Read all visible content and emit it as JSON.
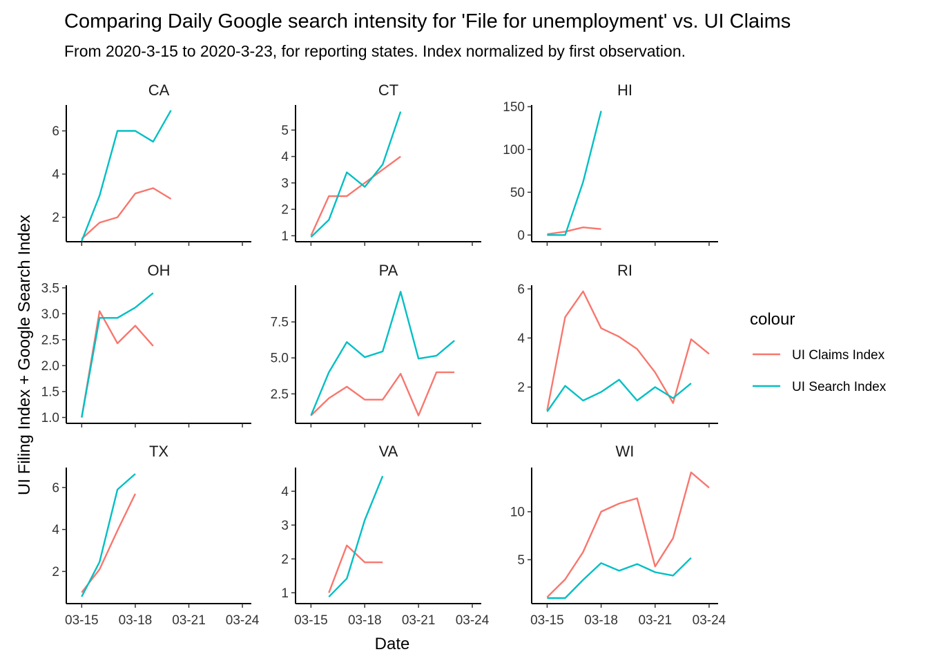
{
  "title": "Comparing Daily Google search intensity for 'File for unemployment' vs. UI Claims",
  "subtitle": "From 2020-3-15 to 2020-3-23, for reporting states. Index normalized by first observation.",
  "xlabel": "Date",
  "ylabel": "UI Filing Index + Google Search Index",
  "legend": {
    "title": "colour",
    "items": [
      {
        "label": "UI Claims Index",
        "color": "#F8766D"
      },
      {
        "label": "UI Search Index",
        "color": "#00BFC4"
      }
    ]
  },
  "chart_data": {
    "type": "line",
    "x_ticks": [
      "03-15",
      "03-18",
      "03-21",
      "03-24"
    ],
    "facets": [
      {
        "state": "CA",
        "ylim": [
          0.9,
          7.2
        ],
        "yticks": [
          2,
          4,
          6
        ],
        "series": [
          {
            "name": "UI Claims Index",
            "x": [
              "03-15",
              "03-16",
              "03-17",
              "03-18",
              "03-19",
              "03-20"
            ],
            "y": [
              1.0,
              1.75,
              2.0,
              3.1,
              3.35,
              2.85
            ]
          },
          {
            "name": "UI Search Index",
            "x": [
              "03-15",
              "03-16",
              "03-17",
              "03-18",
              "03-19",
              "03-20"
            ],
            "y": [
              0.9,
              3.0,
              6.0,
              6.0,
              5.5,
              6.95
            ]
          }
        ]
      },
      {
        "state": "CT",
        "ylim": [
          0.8,
          5.95
        ],
        "yticks": [
          1,
          2,
          3,
          4,
          5
        ],
        "series": [
          {
            "name": "UI Claims Index",
            "x": [
              "03-15",
              "03-16",
              "03-17",
              "03-18",
              "03-19",
              "03-20"
            ],
            "y": [
              1.0,
              2.5,
              2.5,
              3.0,
              3.5,
              4.0
            ]
          },
          {
            "name": "UI Search Index",
            "x": [
              "03-15",
              "03-16",
              "03-17",
              "03-18",
              "03-19",
              "03-20"
            ],
            "y": [
              0.95,
              1.6,
              3.4,
              2.85,
              3.7,
              5.7
            ]
          }
        ]
      },
      {
        "state": "HI",
        "ylim": [
          -7,
          152
        ],
        "yticks": [
          0,
          50,
          100,
          150
        ],
        "series": [
          {
            "name": "UI Claims Index",
            "x": [
              "03-15",
              "03-16",
              "03-17",
              "03-18"
            ],
            "y": [
              1,
              4,
              9,
              7
            ]
          },
          {
            "name": "UI Search Index",
            "x": [
              "03-15",
              "03-16",
              "03-17",
              "03-18"
            ],
            "y": [
              0,
              0,
              62,
              145
            ]
          }
        ]
      },
      {
        "state": "OH",
        "ylim": [
          0.9,
          3.55
        ],
        "yticks": [
          1.0,
          1.5,
          2.0,
          2.5,
          3.0,
          3.5
        ],
        "series": [
          {
            "name": "UI Claims Index",
            "x": [
              "03-15",
              "03-16",
              "03-17",
              "03-18",
              "03-19"
            ],
            "y": [
              1.0,
              3.05,
              2.43,
              2.77,
              2.38
            ]
          },
          {
            "name": "UI Search Index",
            "x": [
              "03-15",
              "03-16",
              "03-17",
              "03-18",
              "03-19"
            ],
            "y": [
              1.0,
              2.92,
              2.92,
              3.12,
              3.4
            ]
          }
        ]
      },
      {
        "state": "PA",
        "ylim": [
          0.5,
          10.05
        ],
        "yticks": [
          2.5,
          5.0,
          7.5
        ],
        "series": [
          {
            "name": "UI Claims Index",
            "x": [
              "03-15",
              "03-16",
              "03-17",
              "03-18",
              "03-19",
              "03-20",
              "03-21",
              "03-22",
              "03-23"
            ],
            "y": [
              1.0,
              2.2,
              3.0,
              2.1,
              2.1,
              3.9,
              1.0,
              4.0,
              4.0
            ]
          },
          {
            "name": "UI Search Index",
            "x": [
              "03-15",
              "03-16",
              "03-17",
              "03-18",
              "03-19",
              "03-20",
              "03-21",
              "03-22",
              "03-23"
            ],
            "y": [
              1.0,
              4.0,
              6.1,
              5.05,
              5.45,
              9.6,
              4.95,
              5.15,
              6.2
            ]
          }
        ]
      },
      {
        "state": "RI",
        "ylim": [
          0.55,
          6.15
        ],
        "yticks": [
          2,
          4,
          6
        ],
        "series": [
          {
            "name": "UI Claims Index",
            "x": [
              "03-15",
              "03-16",
              "03-17",
              "03-18",
              "03-19",
              "03-20",
              "03-21",
              "03-22",
              "03-23",
              "03-24"
            ],
            "y": [
              1.05,
              4.85,
              5.9,
              4.4,
              4.05,
              3.55,
              2.6,
              1.35,
              3.95,
              3.35
            ]
          },
          {
            "name": "UI Search Index",
            "x": [
              "03-15",
              "03-16",
              "03-17",
              "03-18",
              "03-19",
              "03-20",
              "03-21",
              "03-22",
              "03-23"
            ],
            "y": [
              1.0,
              2.05,
              1.45,
              1.8,
              2.3,
              1.45,
              2.0,
              1.55,
              2.15
            ]
          }
        ]
      },
      {
        "state": "TX",
        "ylim": [
          0.5,
          6.95
        ],
        "yticks": [
          2,
          4,
          6
        ],
        "series": [
          {
            "name": "UI Claims Index",
            "x": [
              "03-15",
              "03-16",
              "03-17",
              "03-18"
            ],
            "y": [
              1.0,
              2.1,
              3.95,
              5.7
            ]
          },
          {
            "name": "UI Search Index",
            "x": [
              "03-15",
              "03-16",
              "03-17",
              "03-18"
            ],
            "y": [
              0.8,
              2.45,
              5.9,
              6.65
            ]
          }
        ]
      },
      {
        "state": "VA",
        "ylim": [
          0.7,
          4.7
        ],
        "yticks": [
          1,
          2,
          3,
          4
        ],
        "series": [
          {
            "name": "UI Claims Index",
            "x": [
              "03-16",
              "03-17",
              "03-18",
              "03-19"
            ],
            "y": [
              1.0,
              2.4,
              1.9,
              1.9
            ]
          },
          {
            "name": "UI Search Index",
            "x": [
              "03-16",
              "03-17",
              "03-18",
              "03-19"
            ],
            "y": [
              0.88,
              1.42,
              3.15,
              4.45
            ]
          }
        ]
      },
      {
        "state": "WI",
        "ylim": [
          0.5,
          14.6
        ],
        "yticks": [
          5,
          10
        ],
        "series": [
          {
            "name": "UI Claims Index",
            "x": [
              "03-15",
              "03-16",
              "03-17",
              "03-18",
              "03-19",
              "03-20",
              "03-21",
              "03-22",
              "03-23",
              "03-24"
            ],
            "y": [
              1.1,
              2.95,
              5.8,
              10.0,
              10.85,
              11.4,
              4.3,
              7.25,
              14.1,
              12.5
            ]
          },
          {
            "name": "UI Search Index",
            "x": [
              "03-15",
              "03-16",
              "03-17",
              "03-18",
              "03-19",
              "03-20",
              "03-21",
              "03-22",
              "03-23"
            ],
            "y": [
              1.0,
              1.0,
              2.9,
              4.65,
              3.85,
              4.55,
              3.7,
              3.35,
              5.2
            ]
          }
        ]
      }
    ]
  }
}
